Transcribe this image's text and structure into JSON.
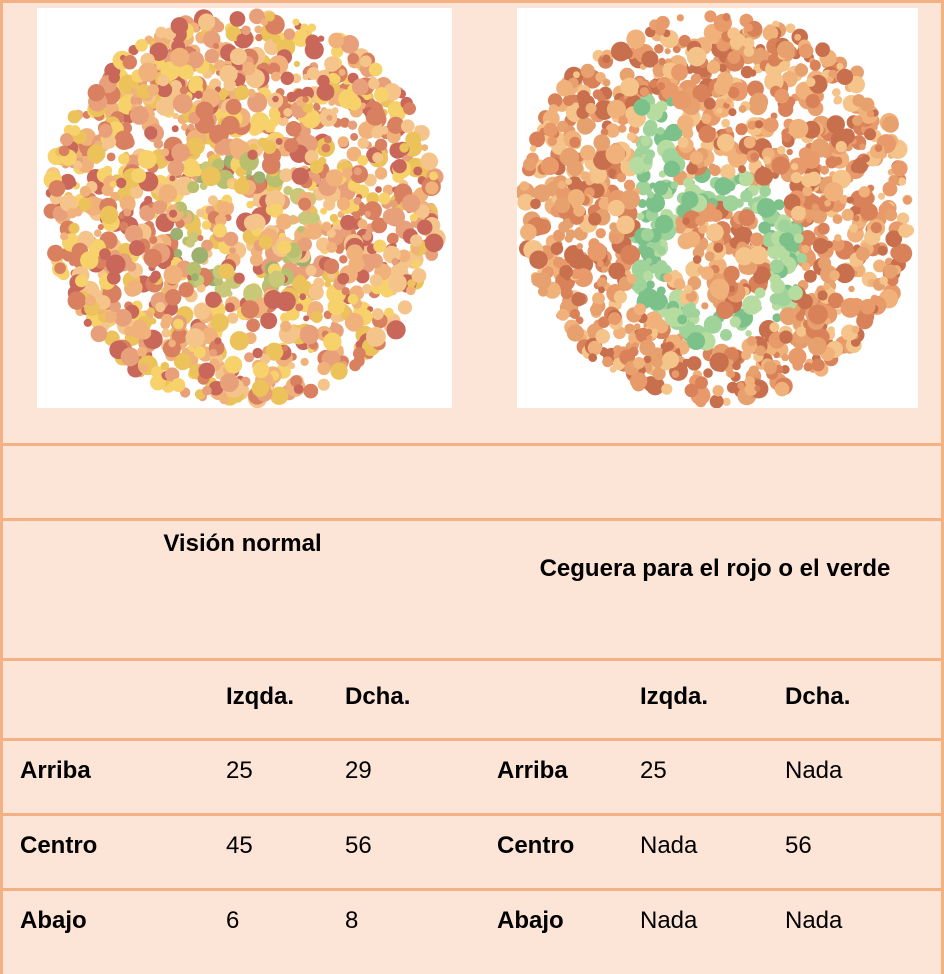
{
  "table": {
    "header": {
      "left": "Visión normal",
      "right": "Ceguera para el rojo o el verde"
    },
    "subheader": {
      "left": [
        "Izqda.",
        "Dcha."
      ],
      "right": [
        "Izqda.",
        "Dcha."
      ]
    },
    "rows": [
      [
        "Arriba",
        25,
        29,
        "Arriba",
        25,
        "Nada"
      ],
      [
        "Centro",
        45,
        56,
        "Centro",
        "Nada",
        56
      ],
      [
        "Abajo",
        6,
        8,
        "Abajo",
        "Nada",
        "Nada"
      ]
    ]
  }
}
